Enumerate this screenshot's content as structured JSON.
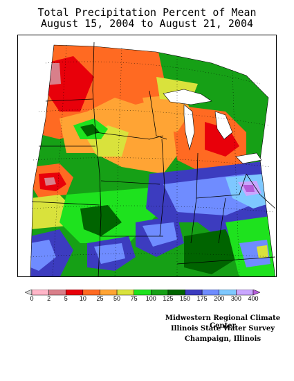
{
  "title": {
    "line1": "Total Precipitation Percent of Mean",
    "line2": "August 15, 2004 to August 21, 2004"
  },
  "legend": {
    "labels": [
      "0",
      "2",
      "5",
      "10",
      "25",
      "50",
      "75",
      "100",
      "125",
      "150",
      "175",
      "200",
      "300",
      "400"
    ],
    "colors": [
      "#d6d6d6",
      "#ffb6c8",
      "#d97f8a",
      "#e8000a",
      "#ff6a22",
      "#ffa434",
      "#d9e23c",
      "#1ee21e",
      "#16a016",
      "#006400",
      "#3c3cbf",
      "#6f8cff",
      "#7ec8ff",
      "#c9a6ff",
      "#b45cd8"
    ]
  },
  "credits": {
    "line1": "Midwestern Regional Climate Center",
    "line2": "Illinois State Water Survey",
    "line3": "Champaign, Illinois"
  },
  "map": {
    "region": "Midwest United States",
    "colors": {
      "orange": "#ff6a22",
      "light_orange": "#ffa434",
      "yellow": "#d9e23c",
      "light_green": "#1ee21e",
      "green": "#16a016",
      "dark_green": "#006400",
      "navy": "#3c3cbf",
      "blue": "#6f8cff",
      "light_blue": "#7ec8ff",
      "lavender": "#c9a6ff",
      "red": "#e8000a",
      "pink": "#d97f8a"
    }
  }
}
